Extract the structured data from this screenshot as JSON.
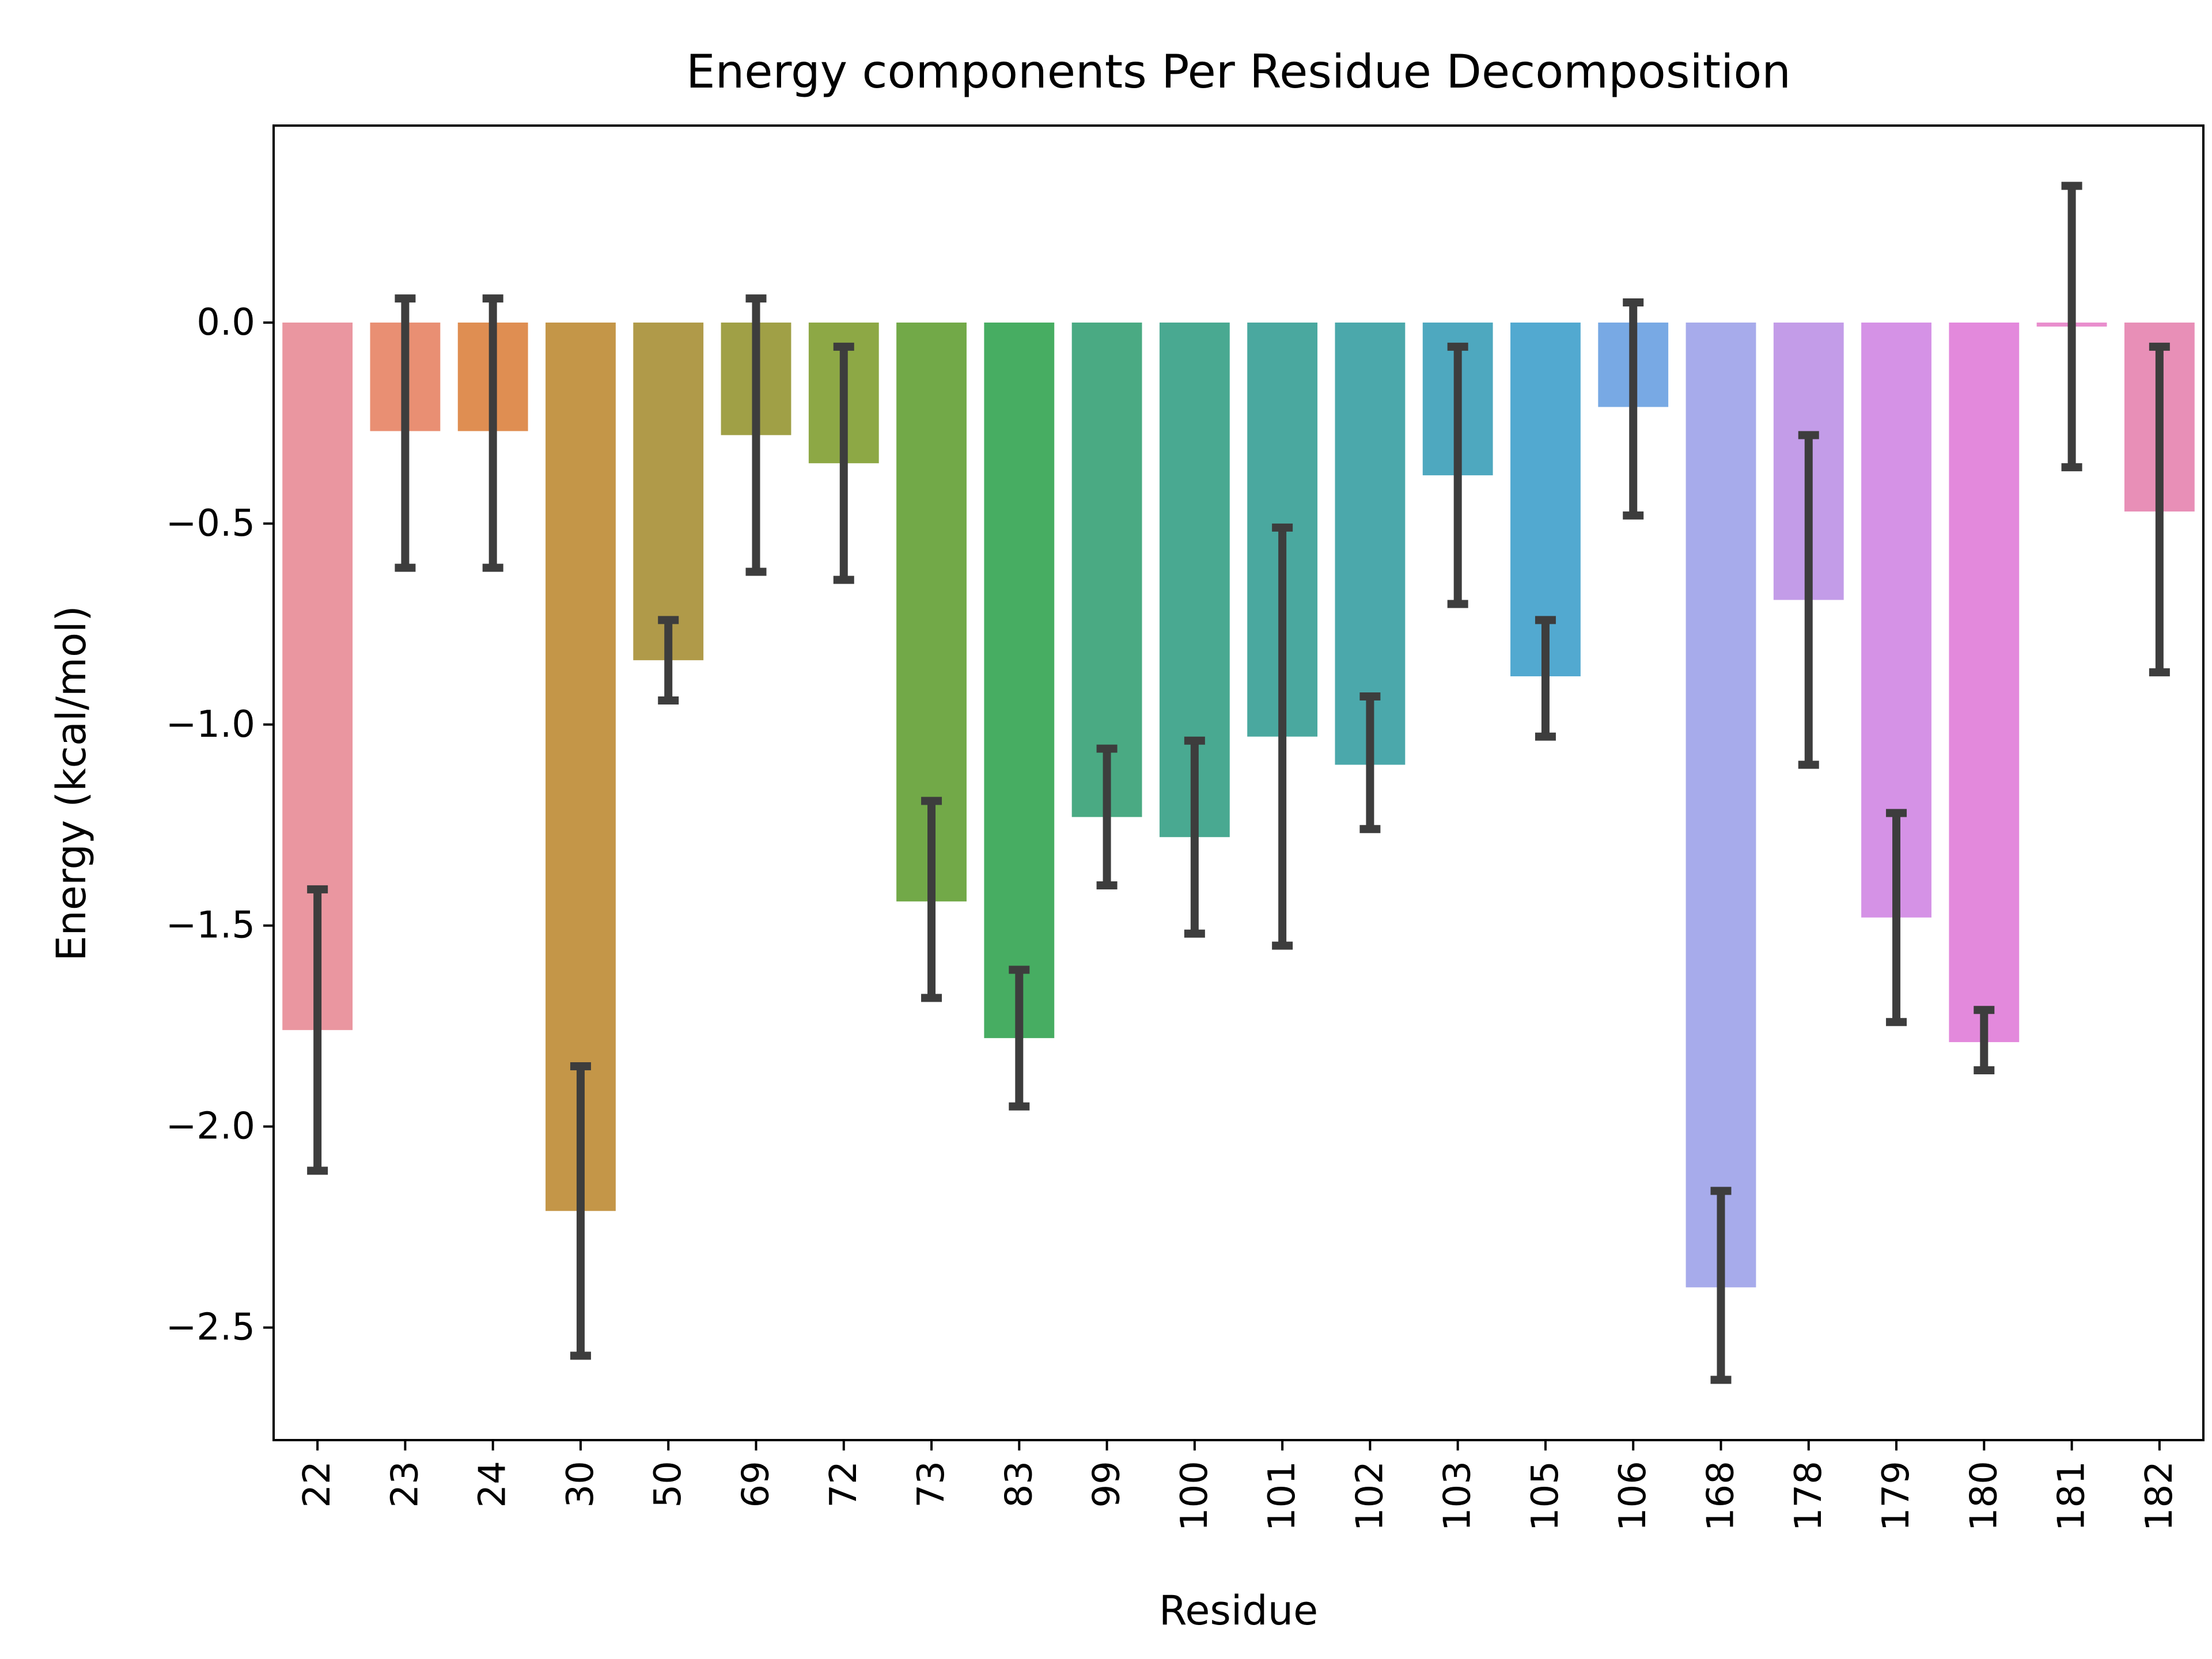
{
  "chart_data": {
    "type": "bar",
    "title": "Energy components Per Residue Decomposition",
    "xlabel": "Residue",
    "ylabel": "Energy (kcal/mol)",
    "ylim": [
      -2.78,
      0.49
    ],
    "yticks": [
      0.0,
      -0.5,
      -1.0,
      -1.5,
      -2.0,
      -2.5
    ],
    "ytick_labels": [
      "0.0",
      "−0.5",
      "−1.0",
      "−1.5",
      "−2.0",
      "−2.5"
    ],
    "grid": false,
    "legend": "none",
    "categories": [
      "22",
      "23",
      "24",
      "30",
      "50",
      "69",
      "72",
      "73",
      "83",
      "99",
      "100",
      "101",
      "102",
      "103",
      "105",
      "106",
      "168",
      "178",
      "179",
      "180",
      "181",
      "182"
    ],
    "values": [
      -1.76,
      -0.27,
      -0.27,
      -2.21,
      -0.84,
      -0.28,
      -0.35,
      -1.44,
      -1.78,
      -1.23,
      -1.28,
      -1.03,
      -1.1,
      -0.38,
      -0.88,
      -0.21,
      -2.4,
      -0.69,
      -1.48,
      -1.79,
      -0.01,
      -0.47
    ],
    "error_low": [
      -2.11,
      -0.61,
      -0.61,
      -2.57,
      -0.94,
      -0.62,
      -0.64,
      -1.68,
      -1.95,
      -1.4,
      -1.52,
      -1.55,
      -1.26,
      -0.7,
      -1.03,
      -0.48,
      -2.63,
      -1.1,
      -1.74,
      -1.86,
      -0.36,
      -0.87
    ],
    "error_high": [
      -1.41,
      0.06,
      0.06,
      -1.85,
      -0.74,
      0.06,
      -0.06,
      -1.19,
      -1.61,
      -1.06,
      -1.04,
      -0.51,
      -0.93,
      -0.06,
      -0.74,
      0.05,
      -2.16,
      -0.28,
      -1.22,
      -1.71,
      0.34,
      -0.06
    ],
    "colors": [
      "#ea96a0",
      "#e98f73",
      "#df8e52",
      "#c49648",
      "#b09a49",
      "#a0a046",
      "#8da845",
      "#72a948",
      "#47ad62",
      "#4aaa83",
      "#49a991",
      "#4aa89f",
      "#4ba8ab",
      "#4ea8bf",
      "#52a9d0",
      "#78a9e4",
      "#a7abeb",
      "#c39ce8",
      "#d592e6",
      "#e389dc",
      "#e98ecd",
      "#e88fb7"
    ],
    "error_color": "#3d3d3d"
  }
}
